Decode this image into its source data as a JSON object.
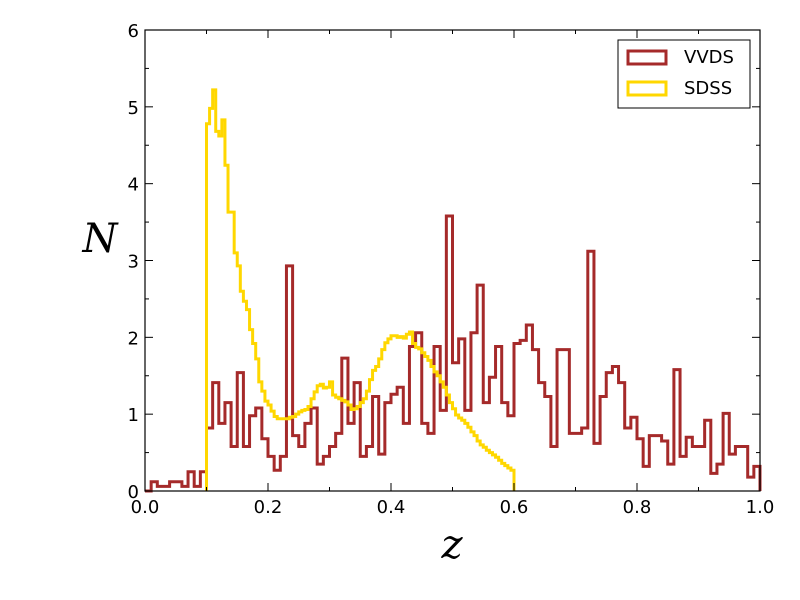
{
  "chart_data": {
    "type": "histogram",
    "xlabel": "z",
    "ylabel": "N",
    "xlim": [
      0.0,
      1.0
    ],
    "ylim": [
      0,
      6
    ],
    "x_ticks": [
      "0.0",
      "0.2",
      "0.4",
      "0.6",
      "0.8",
      "1.0"
    ],
    "y_ticks": [
      "0",
      "1",
      "2",
      "3",
      "4",
      "5",
      "6"
    ],
    "grid": false,
    "legend_position": "top-right",
    "series": [
      {
        "name": "VVDS",
        "color": "#a52a2a",
        "bin_width": 0.01,
        "bin_start": 0.0,
        "values": [
          0,
          0.12,
          0.06,
          0.06,
          0.12,
          0.12,
          0.06,
          0.25,
          0.06,
          0.25,
          0.82,
          1.41,
          0.88,
          1.15,
          0.58,
          1.54,
          0.58,
          0.98,
          1.08,
          0.68,
          0.45,
          0.27,
          0.45,
          2.93,
          0.72,
          0.58,
          0.88,
          1.08,
          0.35,
          0.45,
          0.58,
          0.75,
          1.73,
          0.88,
          1.41,
          0.45,
          0.58,
          1.23,
          0.48,
          1.15,
          1.26,
          1.35,
          0.88,
          1.88,
          2.06,
          0.88,
          0.75,
          1.88,
          1.05,
          3.58,
          1.67,
          1.98,
          1.05,
          2.06,
          2.68,
          1.15,
          1.48,
          1.88,
          1.15,
          0.98,
          1.92,
          1.96,
          2.16,
          1.84,
          1.41,
          1.23,
          0.58,
          1.84,
          1.84,
          0.75,
          0.75,
          0.82,
          3.12,
          0.62,
          1.23,
          1.54,
          1.62,
          1.41,
          0.82,
          0.96,
          0.68,
          0.32,
          0.72,
          0.72,
          0.65,
          0.35,
          1.58,
          0.45,
          0.7,
          0.58,
          0.58,
          0.92,
          0.23,
          0.35,
          1.01,
          0.48,
          0.58,
          0.58,
          0.18,
          0.32
        ]
      },
      {
        "name": "SDSS",
        "color": "#ffd700",
        "bin_width": 0.005,
        "bin_start": 0.1,
        "values": [
          4.78,
          4.98,
          5.22,
          4.68,
          4.62,
          4.83,
          4.24,
          3.63,
          3.63,
          3.1,
          2.93,
          2.6,
          2.47,
          2.36,
          2.1,
          1.92,
          1.72,
          1.42,
          1.3,
          1.17,
          1.12,
          1.04,
          0.97,
          0.94,
          0.94,
          0.94,
          0.94,
          0.96,
          0.97,
          1.0,
          1.03,
          1.05,
          1.06,
          1.1,
          1.2,
          1.29,
          1.37,
          1.39,
          1.34,
          1.35,
          1.42,
          1.25,
          1.22,
          1.2,
          1.18,
          1.16,
          1.12,
          1.06,
          1.07,
          1.1,
          1.15,
          1.2,
          1.3,
          1.45,
          1.57,
          1.62,
          1.72,
          1.84,
          1.93,
          1.98,
          2.02,
          2.02,
          2.0,
          2.01,
          1.99,
          2.04,
          2.07,
          1.92,
          1.87,
          1.85,
          1.8,
          1.75,
          1.7,
          1.62,
          1.55,
          1.5,
          1.42,
          1.35,
          1.25,
          1.15,
          1.07,
          0.99,
          0.95,
          0.92,
          0.88,
          0.83,
          0.77,
          0.72,
          0.65,
          0.6,
          0.57,
          0.53,
          0.5,
          0.47,
          0.44,
          0.4,
          0.36,
          0.33,
          0.3,
          0.27
        ]
      }
    ]
  }
}
